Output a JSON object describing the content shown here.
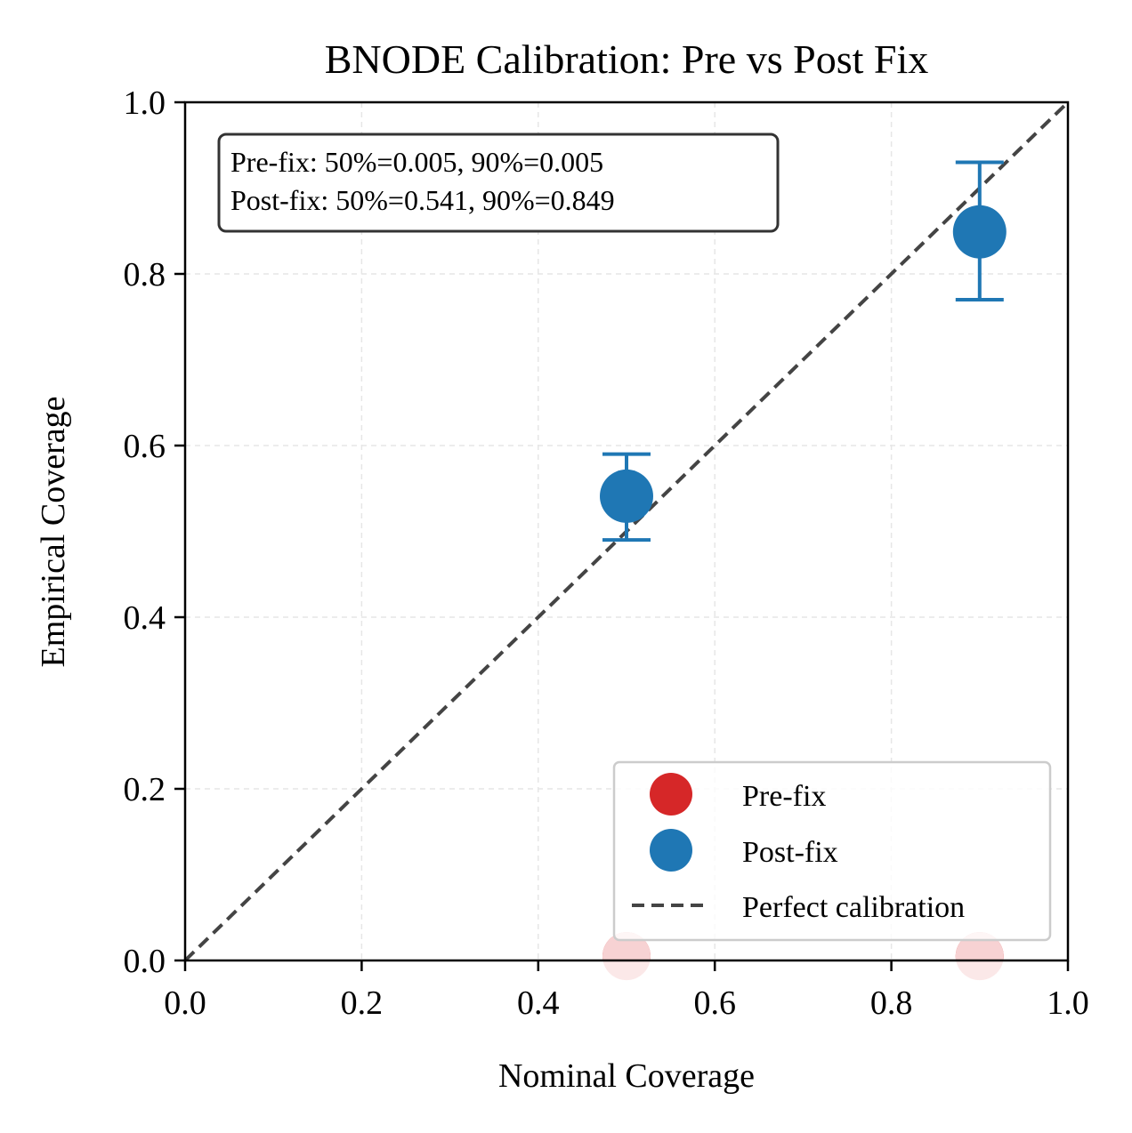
{
  "chart_data": {
    "type": "scatter",
    "title": "BNODE Calibration: Pre vs Post Fix",
    "xlabel": "Nominal Coverage",
    "ylabel": "Empirical Coverage",
    "xlim": [
      0.0,
      1.0
    ],
    "ylim": [
      0.0,
      1.0
    ],
    "xticks": [
      "0.0",
      "0.2",
      "0.4",
      "0.6",
      "0.8",
      "1.0"
    ],
    "yticks": [
      "0.0",
      "0.2",
      "0.4",
      "0.6",
      "0.8",
      "1.0"
    ],
    "grid": true,
    "legend_position": "lower-right",
    "series": [
      {
        "name": "Pre-fix",
        "color": "#d62728",
        "x": [
          0.5,
          0.9
        ],
        "y": [
          0.005,
          0.005
        ]
      },
      {
        "name": "Post-fix",
        "color": "#1f77b4",
        "x": [
          0.5,
          0.9
        ],
        "y": [
          0.541,
          0.849
        ],
        "err_low": [
          0.49,
          0.77
        ],
        "err_high": [
          0.59,
          0.93
        ]
      }
    ],
    "reference_line": {
      "name": "Perfect calibration",
      "color": "#444444",
      "x": [
        0,
        1
      ],
      "y": [
        0,
        1
      ]
    },
    "annotation": {
      "lines": [
        "Pre-fix: 50%=0.005, 90%=0.005",
        "Post-fix: 50%=0.541, 90%=0.849"
      ]
    }
  }
}
